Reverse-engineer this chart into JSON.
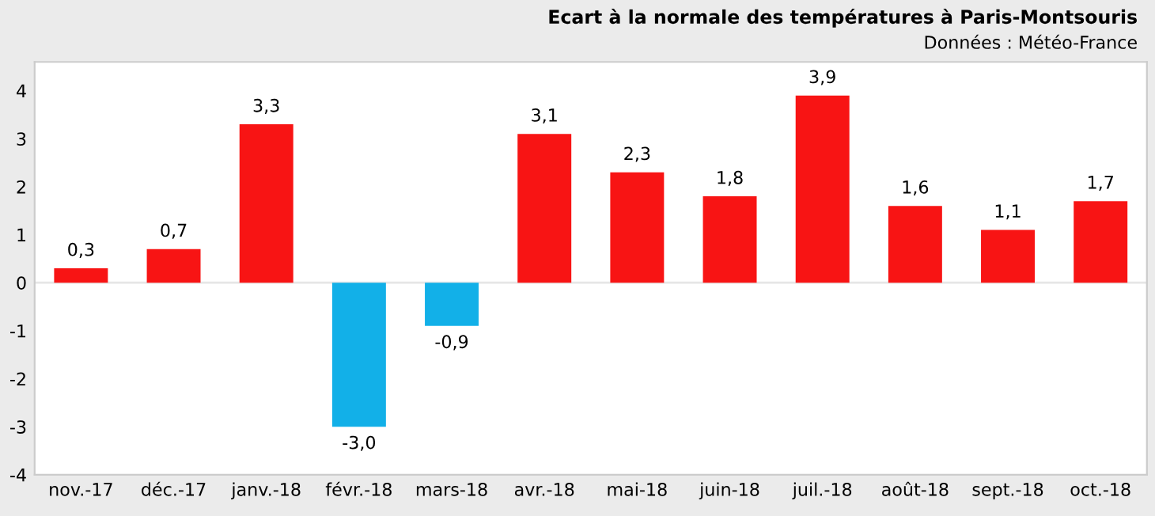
{
  "chart_data": {
    "type": "bar",
    "title": "Ecart à la normale des températures à Paris-Montsouris",
    "subtitle": "Données : Météo-France",
    "categories": [
      "nov.-17",
      "déc.-17",
      "janv.-18",
      "févr.-18",
      "mars-18",
      "avr.-18",
      "mai-18",
      "juin-18",
      "juil.-18",
      "août-18",
      "sept.-18",
      "oct.-18"
    ],
    "values": [
      0.3,
      0.7,
      3.3,
      -3.0,
      -0.9,
      3.1,
      2.3,
      1.8,
      3.9,
      1.6,
      1.1,
      1.7
    ],
    "colors": [
      "#f81414",
      "#f81414",
      "#f81414",
      "#12b0e8",
      "#12b0e8",
      "#f81414",
      "#f81414",
      "#f81414",
      "#f81414",
      "#f81414",
      "#f81414",
      "#f81414"
    ],
    "value_labels": [
      "0,3",
      "0,7",
      "3,3",
      "-3,0",
      "-0,9",
      "3,1",
      "2,3",
      "1,8",
      "3,9",
      "1,6",
      "1,1",
      "1,7"
    ],
    "ylim": [
      -4,
      4.6
    ],
    "yticks": [
      -4,
      -3,
      -2,
      -1,
      0,
      1,
      2,
      3,
      4
    ],
    "ref_lines": [
      {
        "axis": "y",
        "value": 0,
        "color": "#e6e6e6"
      }
    ],
    "grid": false,
    "legend": false
  }
}
